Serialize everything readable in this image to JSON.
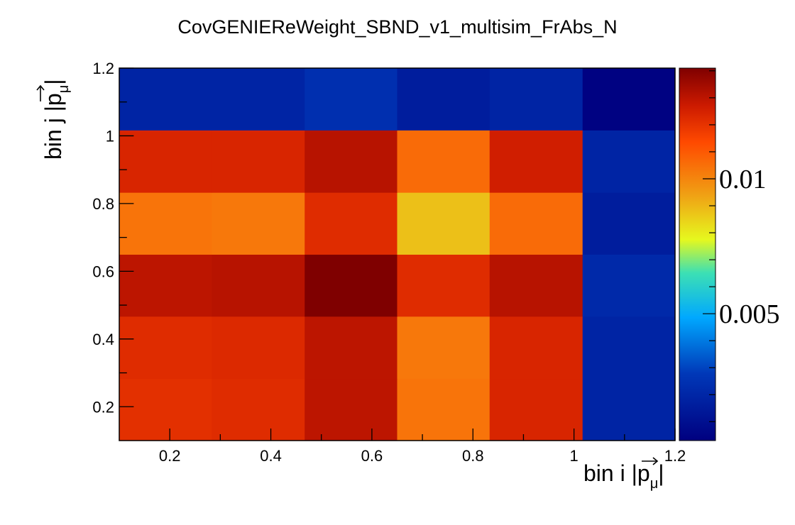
{
  "chart_data": {
    "type": "heatmap",
    "title": "CovGENIEReWeight_SBND_v1_multisim_FrAbs_N",
    "xlabel": {
      "prefix": "bin i |",
      "symbol": "p",
      "subscript": "μ",
      "suffix": "|"
    },
    "ylabel": {
      "prefix": "bin j |",
      "symbol": "p",
      "subscript": "μ",
      "suffix": "|"
    },
    "xlim": [
      0.1,
      1.2
    ],
    "ylim": [
      0.1,
      1.2
    ],
    "x_edges": [
      0.1,
      0.283,
      0.467,
      0.65,
      0.833,
      1.017,
      1.2
    ],
    "y_edges": [
      0.1,
      0.283,
      0.467,
      0.65,
      0.833,
      1.017,
      1.2
    ],
    "x_ticks": [
      0.2,
      0.4,
      0.6,
      0.8,
      1,
      1.2
    ],
    "x_tick_labels": [
      "0.2",
      "0.4",
      "0.6",
      "0.8",
      "1",
      "1.2"
    ],
    "y_ticks": [
      0.2,
      0.4,
      0.6,
      0.8,
      1,
      1.2
    ],
    "y_tick_labels": [
      "0.2",
      "0.4",
      "0.6",
      "0.8",
      "1",
      "1.2"
    ],
    "z_range": [
      0.0003,
      0.0141
    ],
    "colorbar_ticks": [
      0.005,
      0.01
    ],
    "colorbar_tick_labels": [
      "0.005",
      "0.01"
    ],
    "values": [
      [
        0.0121,
        0.0122,
        0.013,
        0.0104,
        0.0124,
        0.0019
      ],
      [
        0.0122,
        0.0123,
        0.013,
        0.0103,
        0.0124,
        0.0019
      ],
      [
        0.013,
        0.0131,
        0.0141,
        0.0122,
        0.0131,
        0.0021
      ],
      [
        0.0104,
        0.0103,
        0.0122,
        0.0088,
        0.0106,
        0.0016
      ],
      [
        0.0124,
        0.0124,
        0.0131,
        0.0106,
        0.0126,
        0.0019
      ],
      [
        0.0019,
        0.0019,
        0.0024,
        0.0016,
        0.0019,
        0.0004
      ]
    ],
    "colormap": [
      "#000080",
      "#0038b8",
      "#00a8ff",
      "#3ce0b4",
      "#e6f81e",
      "#f0a014",
      "#ff4a00",
      "#cc1a00",
      "#7f0000"
    ],
    "colormap_stops": [
      0.0,
      0.18,
      0.33,
      0.45,
      0.54,
      0.66,
      0.8,
      0.9,
      1.0
    ]
  }
}
